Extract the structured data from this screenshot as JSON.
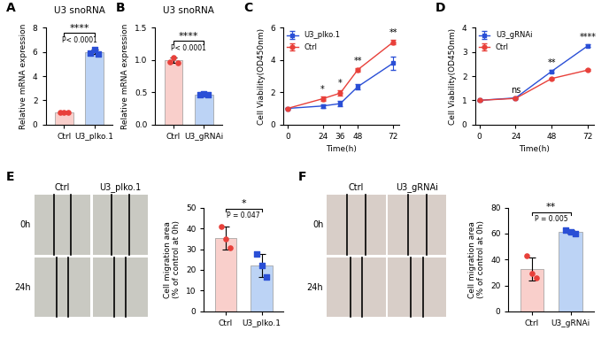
{
  "chart_data": [
    {
      "panel": "A",
      "type": "bar",
      "title": "U3 snoRNA",
      "y_label": "Relative mRNA expression",
      "categories": [
        "Ctrl",
        "U3_plko.1"
      ],
      "values": [
        1.0,
        6.0
      ],
      "errors": [
        0.03,
        0.2
      ],
      "points": [
        [
          1.0,
          1.0,
          1.0
        ],
        [
          5.9,
          6.2,
          5.85
        ]
      ],
      "colors": [
        "#f9cfcb",
        "#bcd3f5"
      ],
      "ylim": [
        0,
        8
      ],
      "yticks": [
        0,
        2,
        4,
        6,
        8
      ],
      "significance": "****",
      "p_label": "P< 0.0001"
    },
    {
      "panel": "B",
      "type": "bar",
      "title": "U3 snoRNA",
      "y_label": "Relative mRNA expression",
      "categories": [
        "Ctrl",
        "U3_gRNAi"
      ],
      "values": [
        1.0,
        0.46
      ],
      "errors": [
        0.04,
        0.01
      ],
      "points": [
        [
          0.97,
          1.04,
          0.96
        ],
        [
          0.46,
          0.47,
          0.46
        ]
      ],
      "colors": [
        "#f9cfcb",
        "#bcd3f5"
      ],
      "ylim": [
        0,
        1.5
      ],
      "yticks": [
        {
          "value": 0,
          "label": "0.0"
        },
        {
          "value": 0.5,
          "label": "0.5"
        },
        {
          "value": 1.0,
          "label": "1.0"
        },
        {
          "value": 1.5,
          "label": "1.5"
        }
      ],
      "significance": "****",
      "p_label": "P< 0.0001"
    },
    {
      "panel": "C",
      "type": "line",
      "x_label": "Time(h)",
      "y_label": "Cell Viability(OD450nm)",
      "x": [
        0,
        24,
        36,
        48,
        72
      ],
      "xlim": [
        -3,
        76
      ],
      "xticks": [
        0,
        24,
        36,
        48,
        72
      ],
      "ylim": [
        0,
        6
      ],
      "yticks": [
        0,
        2,
        4,
        6
      ],
      "legend": "upper left",
      "series": [
        {
          "name": "U3_plko.1",
          "color": "#2a4fd6",
          "marker": "square",
          "values": [
            1.0,
            1.15,
            1.3,
            2.35,
            3.8
          ],
          "errors": [
            0.05,
            0.1,
            0.15,
            0.15,
            0.4
          ]
        },
        {
          "name": "Ctrl",
          "color": "#e8403a",
          "marker": "circle",
          "values": [
            1.0,
            1.6,
            1.95,
            3.4,
            5.1
          ],
          "errors": [
            0.05,
            0.15,
            0.15,
            0.1,
            0.15
          ]
        }
      ],
      "significance": [
        null,
        "*",
        "*",
        "**",
        "**"
      ]
    },
    {
      "panel": "D",
      "type": "line",
      "x_label": "Time(h)",
      "y_label": "Cell Viability(OD450nm)",
      "x": [
        0,
        24,
        48,
        72
      ],
      "xlim": [
        -3,
        76
      ],
      "xticks": [
        0,
        24,
        48,
        72
      ],
      "ylim": [
        0,
        4
      ],
      "yticks": [
        0,
        1,
        2,
        3,
        4
      ],
      "legend": "upper left",
      "series": [
        {
          "name": "U3_gRNAi",
          "color": "#2a4fd6",
          "marker": "square",
          "values": [
            1.0,
            1.1,
            2.2,
            3.25
          ],
          "errors": [
            0.03,
            0.03,
            0.04,
            0.05
          ]
        },
        {
          "name": "Ctrl",
          "color": "#e8403a",
          "marker": "circle",
          "values": [
            1.0,
            1.08,
            1.9,
            2.25
          ],
          "errors": [
            0.03,
            0.03,
            0.03,
            0.04
          ]
        }
      ],
      "significance": [
        null,
        "ns",
        "**",
        "****"
      ]
    },
    {
      "panel": "E",
      "type": "image",
      "columns": [
        "Ctrl",
        "U3_plko.1"
      ],
      "rows": [
        "0h",
        "24h"
      ],
      "color": "#c9c9c2"
    },
    {
      "type": "bar",
      "y_label": "Cell migration area\n(% of control at 0h)",
      "categories": [
        "Ctrl",
        "U3_plko.1"
      ],
      "values": [
        35.5,
        22.0
      ],
      "errors": [
        5.5,
        5.5
      ],
      "points": [
        [
          41.0,
          35.0,
          30.5
        ],
        [
          27.5,
          22.0,
          16.5
        ]
      ],
      "colors": [
        "#f9cfcb",
        "#bcd3f5"
      ],
      "ylim": [
        0,
        50
      ],
      "yticks": [
        0,
        10,
        20,
        30,
        40,
        50
      ],
      "significance": "*",
      "p_label": "P = 0.047"
    },
    {
      "panel": "F",
      "type": "image",
      "columns": [
        "Ctrl",
        "U3_gRNAi"
      ],
      "rows": [
        "0h",
        "24h"
      ],
      "color": "#d8cec8"
    },
    {
      "type": "bar",
      "y_label": "Cell migration area\n(% of control at 0h)",
      "categories": [
        "Ctrl",
        "U3_gRNAi"
      ],
      "values": [
        32.5,
        61.5
      ],
      "errors": [
        9.0,
        1.5
      ],
      "points": [
        [
          43.0,
          29.0,
          26.0
        ],
        [
          63.0,
          61.0,
          60.0
        ]
      ],
      "colors": [
        "#f9cfcb",
        "#bcd3f5"
      ],
      "ylim": [
        0,
        80
      ],
      "yticks": [
        0,
        20,
        40,
        60,
        80
      ],
      "significance": "**",
      "p_label": "P = 0.005"
    }
  ]
}
